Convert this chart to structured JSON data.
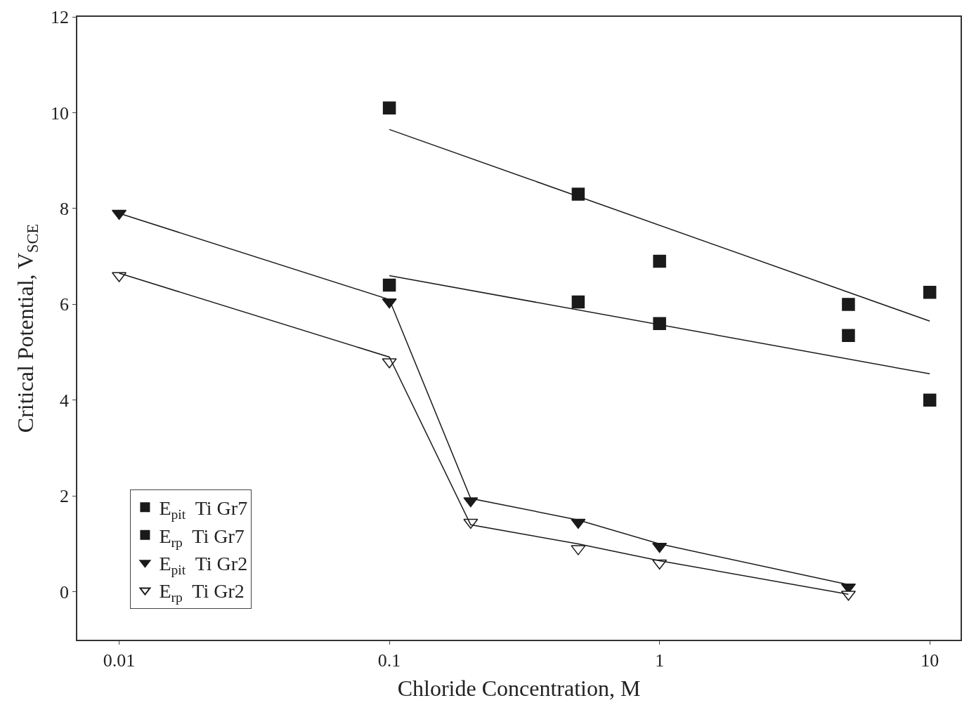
{
  "chart_data": {
    "type": "scatter",
    "xlabel": "Chloride Concentration, M",
    "ylabel": "Critical Potential, V$_{SCE}$",
    "log": "x",
    "xlim": [
      0.007,
      13
    ],
    "ylim": [
      -1,
      12
    ],
    "xticks": [
      0.01,
      0.1,
      1,
      10
    ],
    "yticks": [
      0,
      2,
      4,
      6,
      8,
      10,
      12
    ],
    "legend": "bottom left",
    "series": [
      {
        "name": "E$_{pit}$  Ti Gr7",
        "color": "#1a1a1a",
        "marker": "square",
        "x": [
          0.1,
          0.5,
          1,
          5,
          10
        ],
        "values": [
          10.1,
          8.3,
          6.9,
          6.0,
          6.25
        ]
      },
      {
        "name": "E$_{rp}$  Ti Gr7",
        "color": "#1a1a1a",
        "marker": "square",
        "x": [
          0.1,
          0.5,
          1,
          5,
          10
        ],
        "values": [
          6.4,
          6.05,
          5.6,
          5.35,
          4.0
        ]
      },
      {
        "name": "E$_{pit}$  Ti Gr2",
        "color": "#1a1a1a",
        "marker": "triangle",
        "x": [
          0.01,
          0.1,
          0.2,
          0.5,
          1,
          5
        ],
        "values": [
          7.9,
          6.05,
          1.9,
          1.45,
          0.95,
          0.1
        ]
      },
      {
        "name": "E$_{rp}$  Ti Gr2",
        "color": "#ffffff",
        "marker": "triangle",
        "x": [
          0.01,
          0.1,
          0.2,
          0.5,
          1,
          5
        ],
        "values": [
          6.6,
          4.8,
          1.45,
          0.9,
          0.6,
          -0.05
        ]
      },
      {
        "type": "line",
        "color": "#1a1a1a",
        "marker": "none",
        "x": [
          0.1,
          10
        ],
        "values": [
          9.65,
          5.65
        ]
      },
      {
        "type": "line",
        "color": "#1a1a1a",
        "marker": "none",
        "x": [
          0.1,
          10
        ],
        "values": [
          6.6,
          4.55
        ]
      },
      {
        "type": "line",
        "color": "#1a1a1a",
        "marker": "none",
        "x": [
          0.01,
          0.1,
          0.2,
          0.5,
          1,
          5
        ],
        "values": [
          7.9,
          6.1,
          1.95,
          1.5,
          1.0,
          0.15
        ]
      },
      {
        "type": "line",
        "color": "#1a1a1a",
        "marker": "none",
        "x": [
          0.01,
          0.1,
          0.2,
          0.5,
          1,
          5
        ],
        "values": [
          6.65,
          4.9,
          1.4,
          1.0,
          0.65,
          -0.05
        ]
      }
    ]
  }
}
